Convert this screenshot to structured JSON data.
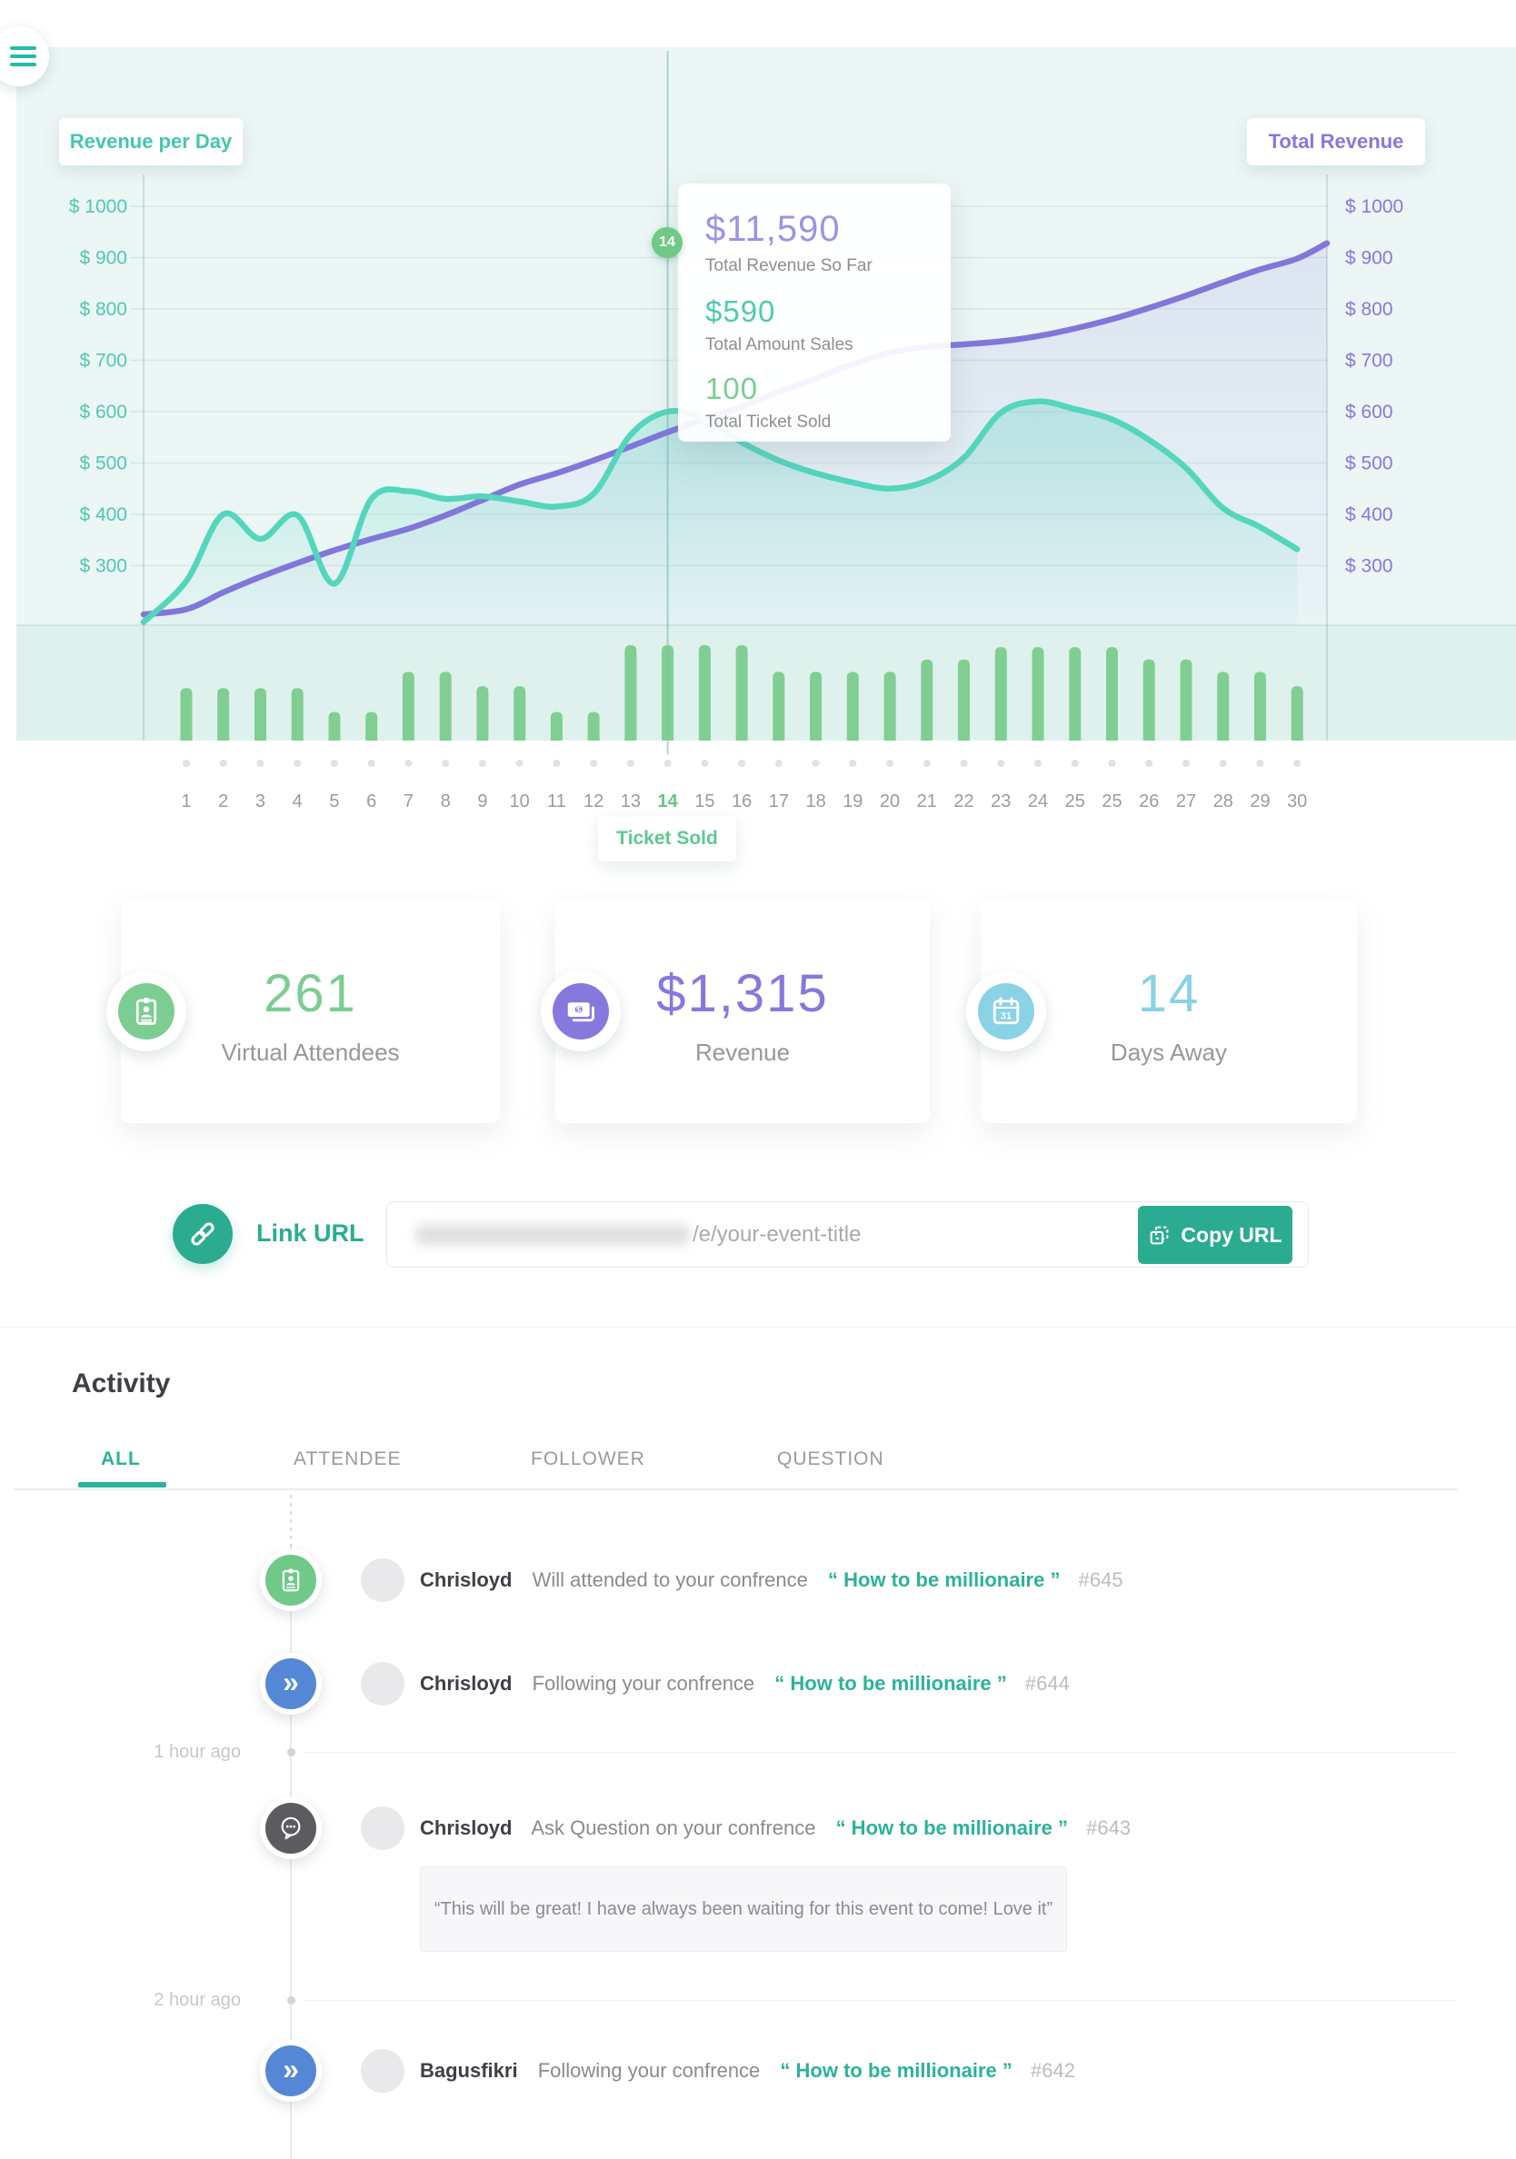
{
  "colors": {
    "accent_teal": "#2bb398",
    "chart_teal": "#54d6bd",
    "chart_purple": "#8176da",
    "bar_green": "#7bcb8e",
    "stat_green": "#7ccd92",
    "stat_purple": "#8579de",
    "stat_blue": "#8ad2e5",
    "follow_blue": "#5587d7",
    "question_dark": "#5c5b60"
  },
  "icons": {
    "follow_glyph": "»"
  },
  "chart": {
    "left_chip": "Revenue per Day",
    "right_chip": "Total Revenue",
    "day_marker": "14",
    "ticket_chip": "Ticket Sold",
    "tooltip": {
      "total_revenue": "$11,590",
      "total_revenue_label": "Total Revenue So Far",
      "total_sales": "$590",
      "total_sales_label": "Total Amount Sales",
      "total_tickets": "100",
      "total_tickets_label": "Total Ticket Sold"
    }
  },
  "chart_data": {
    "type": "line+bar",
    "x_labels": [
      "1",
      "2",
      "3",
      "4",
      "5",
      "6",
      "7",
      "8",
      "9",
      "10",
      "11",
      "12",
      "13",
      "14",
      "15",
      "16",
      "17",
      "18",
      "19",
      "20",
      "21",
      "22",
      "23",
      "24",
      "25",
      "25",
      "26",
      "27",
      "28",
      "29",
      "30"
    ],
    "highlight_index": 13,
    "y_ticks": [
      1000,
      900,
      800,
      700,
      600,
      500,
      400,
      300
    ],
    "y_tick_prefix": "$ ",
    "grid": true,
    "legend_position": "top-chips",
    "series": [
      {
        "name": "Revenue per Day",
        "type": "line",
        "axis": "left",
        "color": "#54d6bd",
        "start_value": 190,
        "values": [
          270,
          400,
          352,
          398,
          265,
          430,
          445,
          430,
          435,
          425,
          415,
          440,
          555,
          600,
          585,
          540,
          505,
          480,
          462,
          450,
          465,
          510,
          598,
          620,
          605,
          585,
          545,
          490,
          412,
          375,
          332
        ]
      },
      {
        "name": "Total Revenue",
        "type": "line",
        "axis": "right",
        "color": "#8176da",
        "start_value": 205,
        "end_value": 928,
        "values": [
          215,
          248,
          278,
          305,
          330,
          352,
          372,
          398,
          428,
          458,
          480,
          505,
          532,
          560,
          585,
          610,
          638,
          665,
          692,
          715,
          726,
          731,
          737,
          747,
          762,
          780,
          802,
          826,
          852,
          877,
          898
        ]
      },
      {
        "name": "Ticket Sold",
        "type": "bar",
        "color": "#7bcb8e",
        "values": [
          55,
          55,
          55,
          55,
          30,
          30,
          72,
          72,
          57,
          57,
          30,
          30,
          100,
          100,
          100,
          100,
          72,
          72,
          72,
          72,
          85,
          85,
          98,
          98,
          98,
          98,
          85,
          85,
          72,
          72,
          57
        ]
      }
    ]
  },
  "stats": {
    "cards": [
      {
        "value": "261",
        "label": "Virtual Attendees",
        "icon": "id-badge",
        "color": "#7ccd92"
      },
      {
        "value": "$1,315",
        "label": "Revenue",
        "icon": "banknote",
        "color": "#8579de"
      },
      {
        "value": "14",
        "label": "Days Away",
        "icon": "calendar",
        "icon_text": "31",
        "color": "#8ad2e5"
      }
    ]
  },
  "link": {
    "label": "Link URL",
    "url_visible": "/e/your-event-title",
    "copy_button": "Copy URL"
  },
  "activity": {
    "title": "Activity",
    "tabs": [
      {
        "label": "ALL",
        "active": true
      },
      {
        "label": "ATTENDEE",
        "active": false
      },
      {
        "label": "FOLLOWER",
        "active": false
      },
      {
        "label": "QUESTION",
        "active": false
      }
    ],
    "timestamps": [
      "1 hour ago",
      "2 hour ago"
    ],
    "items": [
      {
        "user": "Chrisloyd",
        "action": "Will attended to your confrence",
        "event": "“ How to be millionaire ”",
        "ref": "#645",
        "icon": "attendee-badge"
      },
      {
        "user": "Chrisloyd",
        "action": "Following your confrence",
        "event": "“ How to be millionaire ”",
        "ref": "#644",
        "icon": "follow-chevrons"
      },
      {
        "user": "Chrisloyd",
        "action": "Ask Question on your confrence",
        "event": "“ How to be millionaire ”",
        "ref": "#643",
        "icon": "question-bubble",
        "quote": "“This will be great! I have always been waiting for this event to come! Love it”"
      },
      {
        "user": "Bagusfikri",
        "action": "Following your confrence",
        "event": "“ How to be millionaire ”",
        "ref": "#642",
        "icon": "follow-chevrons"
      }
    ]
  }
}
